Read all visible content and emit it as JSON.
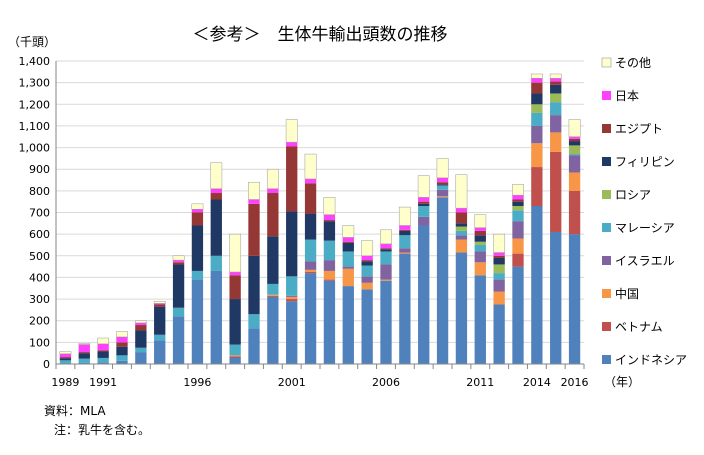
{
  "chart_data": {
    "type": "bar",
    "stacked": true,
    "title": "＜参考＞　生体牛輸出頭数の推移",
    "yunit": "（千頭）",
    "xunit": "（年）",
    "ylim": [
      0,
      1400
    ],
    "yticks": [
      "0",
      "100",
      "200",
      "300",
      "400",
      "500",
      "600",
      "700",
      "800",
      "900",
      "1,000",
      "1,100",
      "1,200",
      "1,300",
      "1,400"
    ],
    "grid": true,
    "legend": "right",
    "categories": [
      "1989",
      "1990",
      "1991",
      "1992",
      "1993",
      "1994",
      "1995",
      "1996",
      "1997",
      "1998",
      "1999",
      "2000",
      "2001",
      "2002",
      "2003",
      "2004",
      "2005",
      "2006",
      "2007",
      "2008",
      "2009",
      "2010",
      "2011",
      "2012",
      "2013",
      "2014",
      "2015",
      "2016"
    ],
    "xtick_labels": [
      {
        "index": 0,
        "label": "1989"
      },
      {
        "index": 2,
        "label": "1991"
      },
      {
        "index": 7,
        "label": "1996"
      },
      {
        "index": 12,
        "label": "2001"
      },
      {
        "index": 17,
        "label": "2006"
      },
      {
        "index": 22,
        "label": "2011"
      },
      {
        "index": 25,
        "label": "2014"
      },
      {
        "index": 27,
        "label": "2016"
      }
    ],
    "series": [
      {
        "name": "インドネシア",
        "color": "#4f81bd",
        "values": [
          2,
          5,
          8,
          15,
          55,
          110,
          220,
          390,
          430,
          30,
          165,
          310,
          290,
          420,
          385,
          360,
          345,
          385,
          510,
          640,
          770,
          515,
          410,
          275,
          450,
          730,
          610,
          600
        ]
      },
      {
        "name": "ベトナム",
        "color": "#c0504d",
        "values": [
          0,
          0,
          0,
          0,
          0,
          0,
          0,
          0,
          0,
          5,
          0,
          5,
          10,
          5,
          5,
          0,
          0,
          0,
          0,
          0,
          0,
          0,
          0,
          0,
          60,
          180,
          370,
          200
        ]
      },
      {
        "name": "中国",
        "color": "#f79646",
        "values": [
          0,
          0,
          0,
          0,
          0,
          0,
          0,
          0,
          0,
          5,
          0,
          5,
          10,
          10,
          40,
          80,
          30,
          5,
          5,
          0,
          5,
          60,
          60,
          60,
          70,
          110,
          90,
          85
        ]
      },
      {
        "name": "イスラエル",
        "color": "#8064a2",
        "values": [
          0,
          0,
          0,
          0,
          0,
          0,
          0,
          0,
          0,
          0,
          0,
          0,
          5,
          40,
          50,
          10,
          30,
          70,
          20,
          40,
          30,
          20,
          50,
          55,
          80,
          80,
          80,
          80
        ]
      },
      {
        "name": "マレーシア",
        "color": "#4bacc6",
        "values": [
          15,
          20,
          20,
          25,
          20,
          25,
          40,
          40,
          70,
          50,
          65,
          50,
          90,
          100,
          90,
          70,
          50,
          60,
          60,
          50,
          20,
          20,
          30,
          30,
          50,
          60,
          60,
          5
        ]
      },
      {
        "name": "ロシア",
        "color": "#9bbb59",
        "values": [
          0,
          0,
          0,
          0,
          0,
          0,
          0,
          0,
          0,
          0,
          0,
          0,
          0,
          0,
          0,
          0,
          0,
          0,
          0,
          0,
          0,
          20,
          15,
          40,
          20,
          40,
          40,
          40
        ]
      },
      {
        "name": "フィリピン",
        "color": "#1f3864",
        "values": [
          10,
          25,
          30,
          40,
          80,
          130,
          200,
          210,
          260,
          210,
          270,
          220,
          300,
          120,
          90,
          40,
          20,
          10,
          20,
          10,
          5,
          15,
          30,
          30,
          20,
          50,
          40,
          20
        ]
      },
      {
        "name": "エジプト",
        "color": "#953735",
        "values": [
          5,
          5,
          5,
          20,
          25,
          10,
          10,
          60,
          30,
          110,
          240,
          200,
          300,
          140,
          5,
          5,
          5,
          5,
          5,
          10,
          10,
          50,
          20,
          10,
          10,
          50,
          15,
          10
        ]
      },
      {
        "name": "日本",
        "color": "#ff40ff",
        "values": [
          15,
          35,
          30,
          25,
          10,
          5,
          10,
          15,
          20,
          15,
          20,
          20,
          20,
          20,
          25,
          20,
          20,
          20,
          20,
          20,
          20,
          20,
          15,
          15,
          20,
          20,
          15,
          10
        ]
      },
      {
        "name": "その他",
        "color": "#ffffcc",
        "values": [
          10,
          5,
          27,
          25,
          10,
          10,
          20,
          25,
          120,
          175,
          80,
          90,
          105,
          115,
          80,
          55,
          70,
          65,
          85,
          100,
          90,
          155,
          60,
          85,
          50,
          20,
          20,
          80
        ]
      }
    ]
  },
  "footer": {
    "source": "資料：MLA",
    "note": "注：乳牛を含む。"
  }
}
